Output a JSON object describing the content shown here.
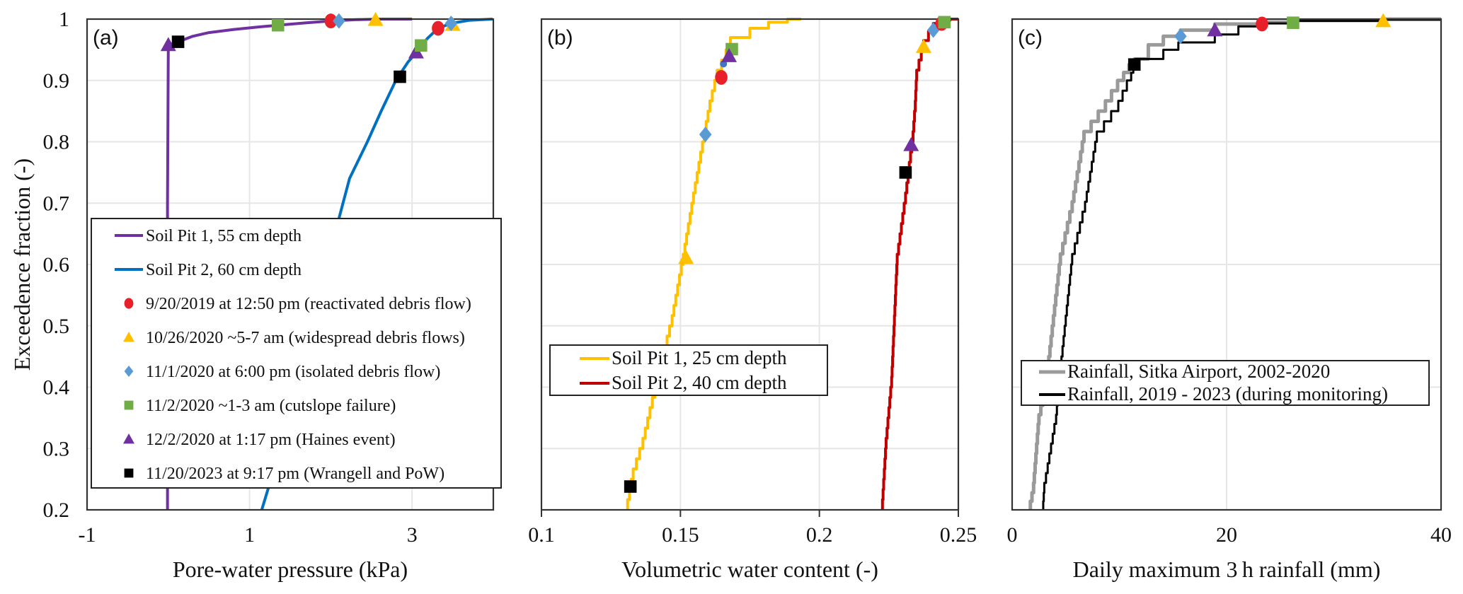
{
  "figure": {
    "y_axis_title": "Exceedence fraction (-)"
  },
  "markers": {
    "red-circle": {
      "shape": "circle",
      "color": "#e8202a"
    },
    "yellow-triangle": {
      "shape": "triangle",
      "color": "#ffc000"
    },
    "blue-diamond": {
      "shape": "diamond",
      "color": "#5b9bd5"
    },
    "green-square": {
      "shape": "square",
      "color": "#70ad47"
    },
    "purple-triangle": {
      "shape": "triangle",
      "color": "#7030a0"
    },
    "black-square": {
      "shape": "square",
      "color": "#000000"
    },
    "blue-dot": {
      "shape": "smallcircle",
      "color": "#4472c4"
    }
  },
  "chart_data": [
    {
      "type": "line",
      "panel_label": "(a)",
      "title": "",
      "xlabel": "Pore-water pressure (kPa)",
      "ylabel": "Exceedence fraction (-)",
      "xlim": [
        -1,
        4
      ],
      "ylim": [
        0.2,
        1
      ],
      "xticks": [
        -1,
        1,
        3
      ],
      "xtick_labels": [
        "-1",
        "1",
        "3"
      ],
      "yticks": [
        0.2,
        0.3,
        0.4,
        0.5,
        0.6,
        0.7,
        0.8,
        0.9,
        1
      ],
      "ytick_labels": [
        "0.2",
        "0.3",
        "0.4",
        "0.5",
        "0.6",
        "0.7",
        "0.8",
        "0.9",
        "1"
      ],
      "xgrid": [
        1,
        3
      ],
      "ygrid": [
        0.3,
        0.4,
        0.5,
        0.6,
        0.7,
        0.8,
        0.9
      ],
      "grid": true,
      "legend_position": "center-left",
      "series": [
        {
          "name": "Soil Pit 1, 55 cm depth",
          "color": "#7030a0",
          "width": 4,
          "points": [
            [
              -0.01,
              0.2
            ],
            [
              -0.01,
              0.7
            ],
            [
              0.0,
              0.955
            ],
            [
              0.05,
              0.96
            ],
            [
              0.12,
              0.963
            ],
            [
              0.3,
              0.972
            ],
            [
              0.5,
              0.978
            ],
            [
              0.8,
              0.983
            ],
            [
              1.1,
              0.987
            ],
            [
              1.35,
              0.99
            ],
            [
              1.7,
              0.994
            ],
            [
              2.0,
              0.997
            ],
            [
              2.3,
              0.999
            ],
            [
              2.6,
              1.0
            ],
            [
              3.0,
              1.0
            ]
          ]
        },
        {
          "name": "Soil Pit 2, 60 cm depth",
          "color": "#0070c0",
          "width": 4,
          "points": [
            [
              1.15,
              0.2
            ],
            [
              1.23,
              0.235
            ],
            [
              1.5,
              0.4
            ],
            [
              1.8,
              0.55
            ],
            [
              2.1,
              0.675
            ],
            [
              2.23,
              0.74
            ],
            [
              2.45,
              0.8
            ],
            [
              2.62,
              0.85
            ],
            [
              2.8,
              0.9
            ],
            [
              2.95,
              0.93
            ],
            [
              3.05,
              0.945
            ],
            [
              3.11,
              0.957
            ],
            [
              3.2,
              0.97
            ],
            [
              3.32,
              0.985
            ],
            [
              3.48,
              0.993
            ],
            [
              3.7,
              0.998
            ],
            [
              3.99,
              1.0
            ]
          ]
        }
      ],
      "events": [
        {
          "series": "Soil Pit 1, 55 cm depth",
          "marker": "purple-triangle",
          "x": 0.0,
          "y": 0.958
        },
        {
          "series": "Soil Pit 1, 55 cm depth",
          "marker": "black-square",
          "x": 0.12,
          "y": 0.963
        },
        {
          "series": "Soil Pit 1, 55 cm depth",
          "marker": "green-square",
          "x": 1.35,
          "y": 0.99
        },
        {
          "series": "Soil Pit 1, 55 cm depth",
          "marker": "red-circle",
          "x": 2.0,
          "y": 0.997
        },
        {
          "series": "Soil Pit 1, 55 cm depth",
          "marker": "blue-diamond",
          "x": 2.1,
          "y": 0.997
        },
        {
          "series": "Soil Pit 1, 55 cm depth",
          "marker": "yellow-triangle",
          "x": 2.55,
          "y": 0.999
        },
        {
          "series": "Soil Pit 2, 60 cm depth",
          "marker": "black-square",
          "x": 2.85,
          "y": 0.906
        },
        {
          "series": "Soil Pit 2, 60 cm depth",
          "marker": "purple-triangle",
          "x": 3.05,
          "y": 0.946
        },
        {
          "series": "Soil Pit 2, 60 cm depth",
          "marker": "green-square",
          "x": 3.11,
          "y": 0.957
        },
        {
          "series": "Soil Pit 2, 60 cm depth",
          "marker": "red-circle",
          "x": 3.32,
          "y": 0.985
        },
        {
          "series": "Soil Pit 2, 60 cm depth",
          "marker": "yellow-triangle",
          "x": 3.5,
          "y": 0.991
        },
        {
          "series": "Soil Pit 2, 60 cm depth",
          "marker": "blue-diamond",
          "x": 3.48,
          "y": 0.993
        }
      ],
      "legend": [
        {
          "kind": "line",
          "color": "#7030a0",
          "label": "Soil Pit 1, 55 cm depth"
        },
        {
          "kind": "line",
          "color": "#0070c0",
          "label": "Soil Pit 2, 60 cm depth"
        },
        {
          "kind": "marker",
          "marker": "red-circle",
          "label": "9/20/2019  at 12:50 pm (reactivated debris flow)"
        },
        {
          "kind": "marker",
          "marker": "yellow-triangle",
          "label": "10/26/2020  ~5-7 am (widespread debris flows)"
        },
        {
          "kind": "marker",
          "marker": "blue-diamond",
          "label": "11/1/2020  at 6:00 pm (isolated debris flow)"
        },
        {
          "kind": "marker",
          "marker": "green-square",
          "label": "11/2/2020  ~1-3 am (cutslope failure)"
        },
        {
          "kind": "marker",
          "marker": "purple-triangle",
          "label": "12/2/2020 at 1:17 pm (Haines event)"
        },
        {
          "kind": "marker",
          "marker": "black-square",
          "label": "11/20/2023 at 9:17 pm (Wrangell and PoW)"
        }
      ]
    },
    {
      "type": "line",
      "panel_label": "(b)",
      "title": "",
      "xlabel": "Volumetric water content (-)",
      "ylabel": "",
      "xlim": [
        0.1,
        0.25
      ],
      "ylim": [
        0.2,
        1
      ],
      "xticks": [
        0.1,
        0.15,
        0.2,
        0.25
      ],
      "xtick_labels": [
        "0.1",
        "0.15",
        "0.2",
        "0.25"
      ],
      "yticks": [],
      "ytick_labels": [],
      "xgrid": [
        0.15,
        0.2
      ],
      "ygrid": [
        0.3,
        0.4,
        0.5,
        0.6,
        0.7,
        0.8,
        0.9
      ],
      "grid": true,
      "legend_position": "center-left",
      "series": [
        {
          "name": "Soil Pit 1, 25 cm depth",
          "color": "#ffc000",
          "width": 4,
          "step": true,
          "points": [
            [
              0.131,
              0.2
            ],
            [
              0.133,
              0.25
            ],
            [
              0.1365,
              0.3
            ],
            [
              0.1416,
              0.4
            ],
            [
              0.147,
              0.5
            ],
            [
              0.151,
              0.6
            ],
            [
              0.1547,
              0.7
            ],
            [
              0.1586,
              0.8
            ],
            [
              0.1606,
              0.85
            ],
            [
              0.1632,
              0.9
            ],
            [
              0.168,
              0.95
            ],
            [
              0.175,
              0.97
            ],
            [
              0.1817,
              0.985
            ],
            [
              0.1885,
              0.995
            ],
            [
              0.1935,
              1.0
            ]
          ]
        },
        {
          "name": "Soil Pit 2, 40 cm depth",
          "color": "#c00000",
          "width": 4,
          "step": true,
          "points": [
            [
              0.2227,
              0.2
            ],
            [
              0.224,
              0.3
            ],
            [
              0.226,
              0.4
            ],
            [
              0.227,
              0.5
            ],
            [
              0.228,
              0.6
            ],
            [
              0.231,
              0.7
            ],
            [
              0.2337,
              0.8
            ],
            [
              0.2345,
              0.85
            ],
            [
              0.235,
              0.9
            ],
            [
              0.2375,
              0.95
            ],
            [
              0.241,
              0.98
            ],
            [
              0.244,
              0.993
            ],
            [
              0.247,
              0.998
            ],
            [
              0.25,
              1.0
            ]
          ]
        }
      ],
      "events": [
        {
          "series": "Soil Pit 1, 25 cm depth",
          "marker": "black-square",
          "x": 0.132,
          "y": 0.238
        },
        {
          "series": "Soil Pit 1, 25 cm depth",
          "marker": "yellow-triangle",
          "x": 0.152,
          "y": 0.611
        },
        {
          "series": "Soil Pit 1, 25 cm depth",
          "marker": "blue-diamond",
          "x": 0.159,
          "y": 0.812
        },
        {
          "series": "Soil Pit 1, 25 cm depth",
          "marker": "red-circle",
          "x": 0.1647,
          "y": 0.905
        },
        {
          "series": "Soil Pit 1, 25 cm depth",
          "marker": "blue-dot",
          "x": 0.1655,
          "y": 0.927
        },
        {
          "series": "Soil Pit 1, 25 cm depth",
          "marker": "green-square",
          "x": 0.1685,
          "y": 0.951
        },
        {
          "series": "Soil Pit 1, 25 cm depth",
          "marker": "purple-triangle",
          "x": 0.1675,
          "y": 0.94
        },
        {
          "series": "Soil Pit 2, 40 cm depth",
          "marker": "black-square",
          "x": 0.231,
          "y": 0.75
        },
        {
          "series": "Soil Pit 2, 40 cm depth",
          "marker": "purple-triangle",
          "x": 0.233,
          "y": 0.795
        },
        {
          "series": "Soil Pit 2, 40 cm depth",
          "marker": "yellow-triangle",
          "x": 0.2375,
          "y": 0.955
        },
        {
          "series": "Soil Pit 2, 40 cm depth",
          "marker": "blue-diamond",
          "x": 0.241,
          "y": 0.982
        },
        {
          "series": "Soil Pit 2, 40 cm depth",
          "marker": "red-circle",
          "x": 0.244,
          "y": 0.993
        },
        {
          "series": "Soil Pit 2, 40 cm depth",
          "marker": "green-square",
          "x": 0.245,
          "y": 0.995
        }
      ],
      "legend": [
        {
          "kind": "line",
          "color": "#ffc000",
          "label": "Soil Pit 1, 25 cm depth"
        },
        {
          "kind": "line",
          "color": "#c00000",
          "label": "Soil Pit 2, 40 cm depth"
        }
      ]
    },
    {
      "type": "line",
      "panel_label": "(c)",
      "title": "",
      "xlabel": "Daily maximum 3 h rainfall (mm)",
      "ylabel": "",
      "xlim": [
        0,
        40
      ],
      "ylim": [
        0.2,
        1
      ],
      "xticks": [
        0,
        20,
        40
      ],
      "xtick_labels": [
        "0",
        "20",
        "40"
      ],
      "yticks": [],
      "ytick_labels": [],
      "xgrid": [
        20
      ],
      "ygrid": [
        0.4,
        0.6,
        0.8
      ],
      "grid": true,
      "legend_position": "center-right",
      "series": [
        {
          "name": "Rainfall, Sitka Airport, 2002-2020",
          "color": "#9a9a9a",
          "width": 5,
          "step": true,
          "points": [
            [
              1.7,
              0.2
            ],
            [
              2.0,
              0.228
            ],
            [
              2.5,
              0.34
            ],
            [
              3.2,
              0.4
            ],
            [
              4.5,
              0.6
            ],
            [
              5.6,
              0.686
            ],
            [
              6.7,
              0.8
            ],
            [
              8.7,
              0.85
            ],
            [
              10.4,
              0.9
            ],
            [
              11.4,
              0.926
            ],
            [
              12.7,
              0.935
            ],
            [
              14.1,
              0.958
            ],
            [
              15.7,
              0.972
            ],
            [
              18.9,
              0.982
            ],
            [
              23.3,
              0.992
            ],
            [
              26.2,
              0.995
            ],
            [
              34.6,
              0.998
            ],
            [
              40,
              1.0
            ]
          ]
        },
        {
          "name": "Rainfall, 2019 - 2023 (during monitoring)",
          "color": "#000000",
          "width": 3,
          "step": true,
          "points": [
            [
              2.9,
              0.2
            ],
            [
              3.0,
              0.228
            ],
            [
              4.1,
              0.34
            ],
            [
              4.4,
              0.4
            ],
            [
              5.6,
              0.6
            ],
            [
              6.8,
              0.686
            ],
            [
              7.9,
              0.8
            ],
            [
              9.9,
              0.85
            ],
            [
              11.1,
              0.9
            ],
            [
              11.5,
              0.925
            ],
            [
              14.1,
              0.935
            ],
            [
              15.5,
              0.95
            ],
            [
              18.9,
              0.962
            ],
            [
              23.3,
              0.988
            ],
            [
              26.2,
              0.993
            ],
            [
              34.6,
              0.997
            ],
            [
              40,
              0.999
            ]
          ]
        }
      ],
      "events": [
        {
          "series": "Rainfall",
          "marker": "black-square",
          "x": 11.4,
          "y": 0.926
        },
        {
          "series": "Rainfall",
          "marker": "blue-diamond",
          "x": 15.7,
          "y": 0.972
        },
        {
          "series": "Rainfall",
          "marker": "purple-triangle",
          "x": 18.9,
          "y": 0.982
        },
        {
          "series": "Rainfall",
          "marker": "red-circle",
          "x": 23.3,
          "y": 0.992
        },
        {
          "series": "Rainfall",
          "marker": "green-square",
          "x": 26.2,
          "y": 0.994
        },
        {
          "series": "Rainfall",
          "marker": "yellow-triangle",
          "x": 34.6,
          "y": 0.997
        }
      ],
      "legend": [
        {
          "kind": "line",
          "color": "#9a9a9a",
          "label": "Rainfall, Sitka Airport, 2002-2020"
        },
        {
          "kind": "line",
          "color": "#000000",
          "label": "Rainfall, 2019 - 2023 (during monitoring)"
        }
      ]
    }
  ]
}
